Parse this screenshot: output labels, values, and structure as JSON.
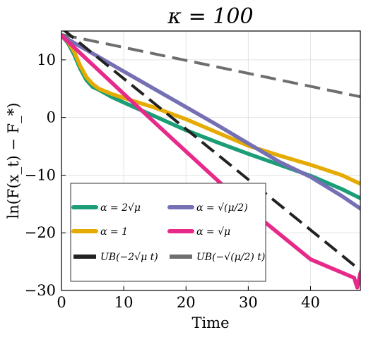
{
  "chart_data": {
    "type": "line",
    "title": "κ = 100",
    "xlabel": "Time",
    "ylabel": "ln(F(x_t) − F_*)",
    "xlim": [
      0,
      48
    ],
    "ylim": [
      -30,
      15
    ],
    "xticks": [
      0,
      10,
      20,
      30,
      40
    ],
    "yticks": [
      10,
      0,
      -10,
      -20,
      -30
    ],
    "x_tick_labels": [
      "0",
      "10",
      "20",
      "30",
      "40"
    ],
    "y_tick_labels": [
      "10",
      "0",
      "−10",
      "−20",
      "−30"
    ],
    "grid": true,
    "legend_position": "bottom-left",
    "series": [
      {
        "name": "α = 2√μ",
        "color": "#1b9e77",
        "style": "solid",
        "x": [
          0,
          1,
          2,
          3,
          4,
          5,
          6,
          8,
          10,
          15,
          20,
          25,
          30,
          35,
          40,
          45,
          48
        ],
        "y": [
          14.2,
          13.0,
          11.0,
          8.5,
          6.5,
          5.3,
          4.8,
          3.6,
          2.6,
          0.2,
          -2.2,
          -4.3,
          -6.3,
          -8.2,
          -10.1,
          -12.4,
          -14.0
        ]
      },
      {
        "name": "α = √(μ/2)",
        "color": "#7570b3",
        "style": "solid",
        "x": [
          0,
          5,
          10,
          15,
          20,
          25,
          30,
          35,
          40,
          45,
          48
        ],
        "y": [
          14.2,
          11.1,
          8.0,
          4.9,
          1.8,
          -1.3,
          -4.5,
          -7.7,
          -10.3,
          -13.6,
          -15.8
        ]
      },
      {
        "name": "α = 1",
        "color": "#e6ab02",
        "style": "solid",
        "x": [
          0,
          1,
          2,
          3,
          4,
          5,
          6,
          8,
          10,
          15,
          20,
          25,
          30,
          35,
          40,
          45,
          48
        ],
        "y": [
          14.2,
          13.2,
          11.5,
          9.0,
          7.0,
          5.8,
          5.0,
          4.1,
          3.4,
          1.7,
          -0.3,
          -2.6,
          -4.9,
          -6.6,
          -8.2,
          -10.0,
          -11.5
        ]
      },
      {
        "name": "α = √μ",
        "color": "#e7298a",
        "style": "solid",
        "x": [
          0,
          10,
          20,
          30,
          40,
          47,
          47.5,
          48
        ],
        "y": [
          14.2,
          4.1,
          -5.9,
          -15.8,
          -24.6,
          -27.8,
          -29.5,
          -27.0
        ]
      },
      {
        "name": "UB(−2√μ t)",
        "color": "#222222",
        "style": "dashed",
        "x": [
          0,
          48
        ],
        "y": [
          15.5,
          -26.5
        ]
      },
      {
        "name": "UB(−√(μ/2) t)",
        "color": "#6e6e6e",
        "style": "dashed",
        "x": [
          0,
          48
        ],
        "y": [
          14.4,
          3.6
        ]
      }
    ]
  }
}
